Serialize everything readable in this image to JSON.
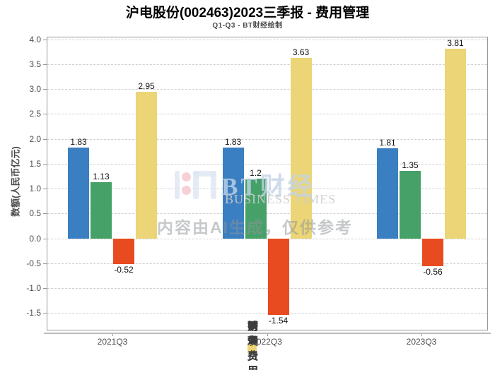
{
  "header": {
    "title": "沪电股份(002463)2023三季报 - 费用管理",
    "subtitle": "Q1-Q3 - BT财经绘制"
  },
  "chart_data": {
    "type": "bar",
    "title": "沪电股份(002463)2023三季报 - 费用管理",
    "subtitle": "Q1-Q3 - BT财经绘制",
    "categories": [
      "2021Q3",
      "2022Q3",
      "2023Q3"
    ],
    "series": [
      {
        "name": "销售费用",
        "color": "#3a7fc1",
        "values": [
          1.83,
          1.83,
          1.81
        ],
        "labels": [
          "1.83",
          "1.83",
          "1.81"
        ]
      },
      {
        "name": "管理费用",
        "color": "#46a169",
        "values": [
          1.13,
          1.2,
          1.35
        ],
        "labels": [
          "1.13",
          "1.2",
          "1.35"
        ]
      },
      {
        "name": "财务费用",
        "color": "#e84b20",
        "values": [
          -0.52,
          -1.54,
          -0.56
        ],
        "labels": [
          "-0.52",
          "-1.54",
          "-0.56"
        ]
      },
      {
        "name": "研发费用",
        "color": "#ebd576",
        "values": [
          2.95,
          3.63,
          3.81
        ],
        "labels": [
          "2.95",
          "3.63",
          "3.81"
        ]
      }
    ],
    "xlabel": "",
    "ylabel": "数额(人民币亿元)",
    "yticks": [
      4.0,
      3.5,
      3.0,
      2.5,
      2.0,
      1.5,
      1.0,
      0.5,
      0.0,
      -0.5,
      -1.0,
      -1.5
    ],
    "ytick_labels": [
      "4.0",
      "3.5",
      "3.0",
      "2.5",
      "2.0",
      "1.5",
      "1.0",
      "0.5",
      "0.0",
      "-0.5",
      "-1.0",
      "-1.5"
    ],
    "ylim": [
      -1.85,
      4.05
    ],
    "grid": true,
    "grid_style": "dashed",
    "legend_position": "bottom"
  },
  "watermark": {
    "logo_text": "BT财经",
    "logo_subtext": "BUSINESS TIMES",
    "ai_text": "内容由AI生成，仅供参考"
  }
}
